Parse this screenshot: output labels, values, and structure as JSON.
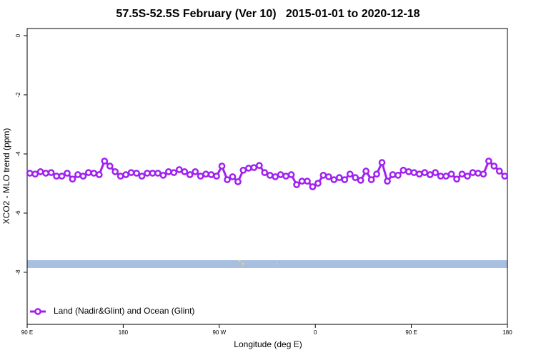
{
  "chart_data": {
    "type": "line",
    "title": "57.5S-52.5S February (Ver 10)   2015-01-01 to 2020-12-18",
    "x_label": "Longitude (deg E)",
    "y_label": "XCO2 - MLO trend (ppm)",
    "x": [
      92.5,
      97.5,
      102.5,
      107.5,
      112.5,
      117.5,
      122.5,
      127.5,
      132.5,
      137.5,
      142.5,
      147.5,
      152.5,
      157.5,
      162.5,
      167.5,
      172.5,
      177.5,
      182.5,
      187.5,
      192.5,
      197.5,
      202.5,
      207.5,
      212.5,
      217.5,
      222.5,
      227.5,
      232.5,
      237.5,
      242.5,
      247.5,
      252.5,
      257.5,
      262.5,
      267.5,
      272.5,
      277.5,
      282.5,
      287.5,
      292.5,
      297.5,
      302.5,
      307.5,
      312.5,
      317.5,
      322.5,
      327.5,
      332.5,
      337.5,
      342.5,
      347.5,
      352.5,
      357.5,
      362.5,
      367.5,
      372.5,
      377.5,
      382.5,
      387.5,
      392.5,
      397.5,
      402.5,
      407.5,
      412.5,
      417.5,
      422.5,
      427.5,
      432.5,
      437.5,
      442.5,
      447.5,
      452.5,
      457.5,
      462.5,
      467.5,
      472.5,
      477.5,
      482.5,
      487.5,
      492.5,
      497.5,
      502.5,
      507.5,
      512.5,
      517.5,
      522.5,
      527.5,
      532.5,
      537.5
    ],
    "series": [
      {
        "name": "Land (Nadir&Glint) and Ocean (Glint)",
        "color": "#a020f0",
        "values": [
          -4.65,
          -4.68,
          -4.6,
          -4.65,
          -4.63,
          -4.75,
          -4.75,
          -4.65,
          -4.85,
          -4.7,
          -4.75,
          -4.63,
          -4.65,
          -4.7,
          -4.24,
          -4.41,
          -4.6,
          -4.75,
          -4.7,
          -4.63,
          -4.65,
          -4.75,
          -4.65,
          -4.65,
          -4.65,
          -4.72,
          -4.6,
          -4.63,
          -4.53,
          -4.6,
          -4.7,
          -4.6,
          -4.75,
          -4.68,
          -4.7,
          -4.75,
          -4.41,
          -4.87,
          -4.77,
          -4.94,
          -4.55,
          -4.48,
          -4.46,
          -4.39,
          -4.63,
          -4.72,
          -4.77,
          -4.7,
          -4.75,
          -4.7,
          -5.04,
          -4.92,
          -4.92,
          -5.11,
          -4.99,
          -4.72,
          -4.77,
          -4.87,
          -4.8,
          -4.87,
          -4.68,
          -4.8,
          -4.89,
          -4.58,
          -4.87,
          -4.68,
          -4.29,
          -4.92,
          -4.7,
          -4.72,
          -4.55,
          -4.6,
          -4.63,
          -4.68,
          -4.63,
          -4.7,
          -4.63,
          -4.75,
          -4.75,
          -4.68,
          -4.85,
          -4.68,
          -4.75,
          -4.63,
          -4.65,
          -4.68,
          -4.24,
          -4.41,
          -4.58,
          -4.75
        ]
      }
    ],
    "xlim": [
      90,
      540
    ],
    "xticks": [
      {
        "value": 90,
        "label": "90 E"
      },
      180,
      {
        "value": 270,
        "label": "90 W"
      },
      {
        "value": 360,
        "label": "0"
      },
      {
        "value": 450,
        "label": "90 E"
      },
      {
        "value": 540,
        "label": "180"
      }
    ],
    "ylim": [
      -9.76,
      0.24
    ],
    "yticks": [
      0,
      -2,
      -4,
      -6,
      -8
    ],
    "legend": "bottomleft"
  }
}
